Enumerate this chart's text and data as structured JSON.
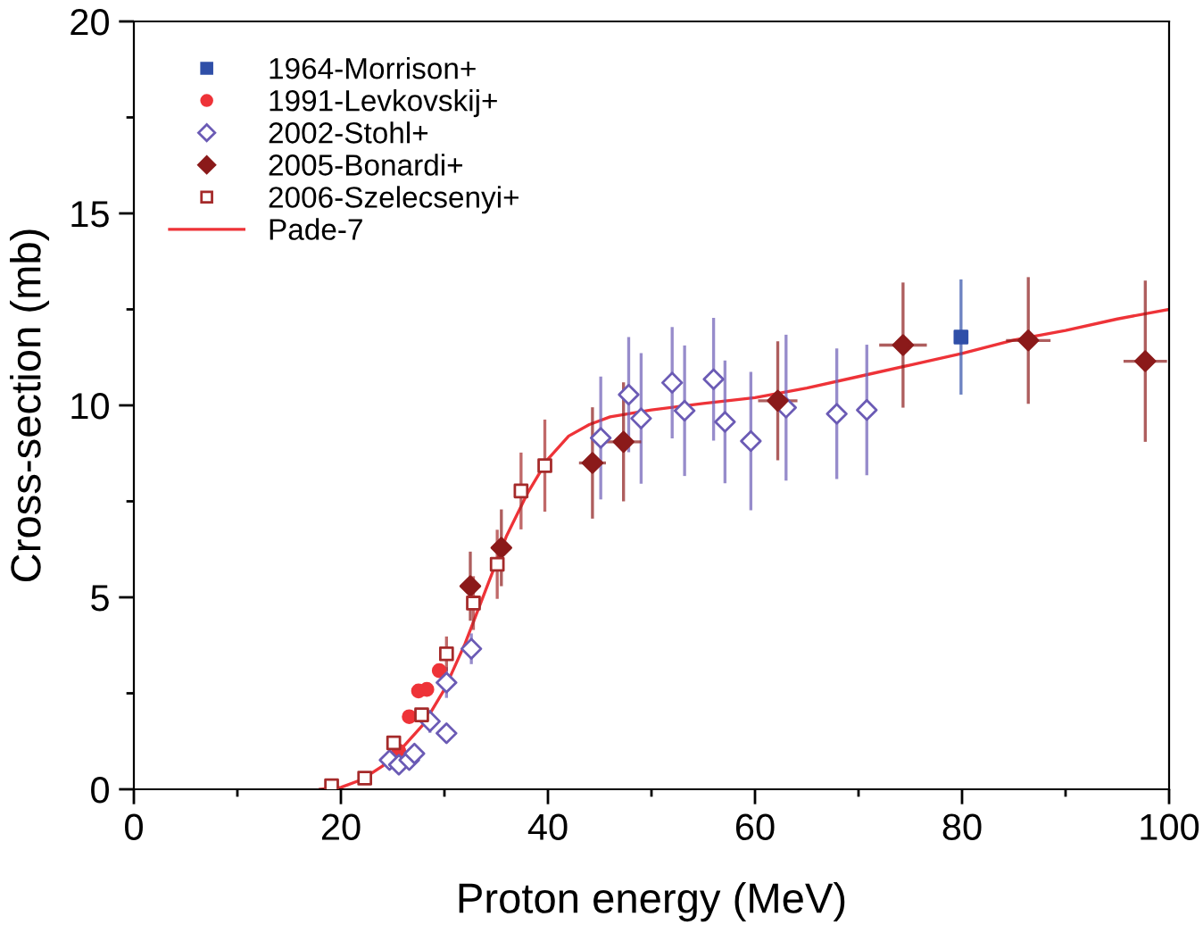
{
  "chart_data": {
    "type": "scatter",
    "xlabel": "Proton energy (MeV)",
    "ylabel": "Cross-section (mb)",
    "xlim": [
      0,
      100
    ],
    "ylim": [
      0,
      20
    ],
    "xticks": [
      0,
      {
        "value": 10,
        "label": null
      },
      20,
      {
        "value": 30,
        "label": null
      },
      40,
      {
        "value": 50,
        "label": null
      },
      60,
      {
        "value": 70,
        "label": null
      },
      80,
      {
        "value": 90,
        "label": null
      },
      100
    ],
    "yticks": [
      0,
      {
        "value": 2.5,
        "label": null
      },
      5,
      {
        "value": 7.5,
        "label": null
      },
      10,
      {
        "value": 12.5,
        "label": null
      },
      15,
      {
        "value": 17.5,
        "label": null
      },
      20
    ],
    "grid": false,
    "legend": "top left",
    "series": [
      {
        "name": "1964-Morrison+",
        "color": "#2f4fa8",
        "marker": "square",
        "x": [
          79.9
        ],
        "values": [
          11.78
        ],
        "errors": [
          1.5
        ]
      },
      {
        "name": "1991-Levkovskij+",
        "color": "#ee3338",
        "marker": "circle",
        "x": [
          25.6,
          26.6,
          27.5,
          28.3,
          29.5
        ],
        "values": [
          0.99,
          1.89,
          2.56,
          2.6,
          3.09
        ]
      },
      {
        "name": "2002-Stohl+",
        "color": "#6b5bb5",
        "marker": "diamond",
        "x": [
          24.7,
          25.6,
          26.6,
          27.1,
          28.6,
          30.2,
          30.2,
          32.6,
          45.1,
          47.8,
          49.0,
          52.0,
          53.2,
          56.0,
          57.1,
          59.6,
          63.0,
          67.9,
          70.8
        ],
        "values": [
          0.76,
          0.64,
          0.76,
          0.93,
          1.77,
          1.46,
          2.78,
          3.66,
          9.15,
          10.28,
          9.66,
          10.59,
          9.86,
          10.68,
          9.57,
          9.07,
          9.94,
          9.78,
          9.88
        ],
        "errors": [
          null,
          null,
          null,
          null,
          0.3,
          null,
          0.4,
          0.4,
          1.6,
          1.5,
          1.7,
          1.45,
          1.7,
          1.6,
          1.6,
          1.8,
          1.9,
          1.7,
          1.7
        ]
      },
      {
        "name": "2005-Bonardi+",
        "color": "#8b1a1a",
        "marker": "diamond",
        "x": [
          32.5,
          35.5,
          44.3,
          47.3,
          62.2,
          74.3,
          86.4,
          97.7
        ],
        "values": [
          5.29,
          6.29,
          8.5,
          9.05,
          10.12,
          11.57,
          11.69,
          11.15
        ],
        "errors": [
          0.9,
          1.0,
          1.45,
          1.55,
          1.55,
          1.63,
          1.65,
          2.1
        ],
        "xerrors": [
          0.8,
          0.8,
          1.3,
          1.7,
          1.9,
          2.3,
          2.15,
          2.1
        ]
      },
      {
        "name": "2006-Szelecsenyi+",
        "color": "#a52a2a",
        "marker": "square",
        "x": [
          19.1,
          22.3,
          25.1,
          27.8,
          30.2,
          32.8,
          35.1,
          37.4,
          39.7
        ],
        "values": [
          0.09,
          0.29,
          1.21,
          1.94,
          3.53,
          4.85,
          5.86,
          7.77,
          8.43
        ],
        "errors": [
          null,
          null,
          null,
          null,
          0.45,
          0.7,
          0.9,
          1.0,
          1.2
        ]
      },
      {
        "name": "Pade-7",
        "type": "line",
        "color": "#ee3338",
        "marker": "none",
        "line_style": "solid",
        "x": [
          18,
          20,
          22,
          24,
          26,
          28,
          30,
          32,
          34,
          36,
          38,
          40,
          42,
          44,
          46,
          50,
          55,
          60,
          65,
          70,
          75,
          80,
          85,
          90,
          95,
          100
        ],
        "values": [
          0,
          0.05,
          0.25,
          0.6,
          1.1,
          1.7,
          2.6,
          3.8,
          5.2,
          6.6,
          7.7,
          8.6,
          9.2,
          9.5,
          9.7,
          9.88,
          10.05,
          10.2,
          10.45,
          10.75,
          11.05,
          11.35,
          11.7,
          11.95,
          12.25,
          12.5
        ]
      }
    ]
  }
}
